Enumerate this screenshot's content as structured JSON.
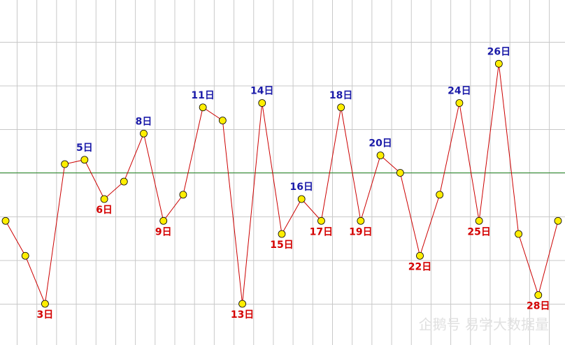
{
  "chart_data": {
    "type": "line",
    "categories": [
      null,
      null,
      "3日",
      null,
      "5日",
      "6日",
      null,
      "8日",
      "9日",
      null,
      "11日",
      null,
      "13日",
      "14日",
      "15日",
      "16日",
      "17日",
      "18日",
      "19日",
      "20日",
      null,
      "22日",
      null,
      "24日",
      "25日",
      "26日",
      null,
      "28日",
      null
    ],
    "values": [
      1.9,
      1.1,
      0,
      3.2,
      3.3,
      2.4,
      2.8,
      3.9,
      1.9,
      2.5,
      4.5,
      4.2,
      0,
      4.6,
      1.6,
      2.4,
      1.9,
      4.5,
      1.9,
      3.4,
      3.0,
      1.1,
      2.5,
      4.6,
      1.9,
      5.5,
      1.6,
      0.2,
      1.9
    ],
    "color": "#cc0000",
    "marker_color": "#ffee00",
    "high_label_color": "#1a1aa8",
    "low_label_color": "#d40000",
    "ylim": [
      -1,
      7
    ],
    "reference_line": {
      "value": 3,
      "color": "#2a8a2a"
    }
  },
  "watermark": "企鹅号 易学大数据量"
}
